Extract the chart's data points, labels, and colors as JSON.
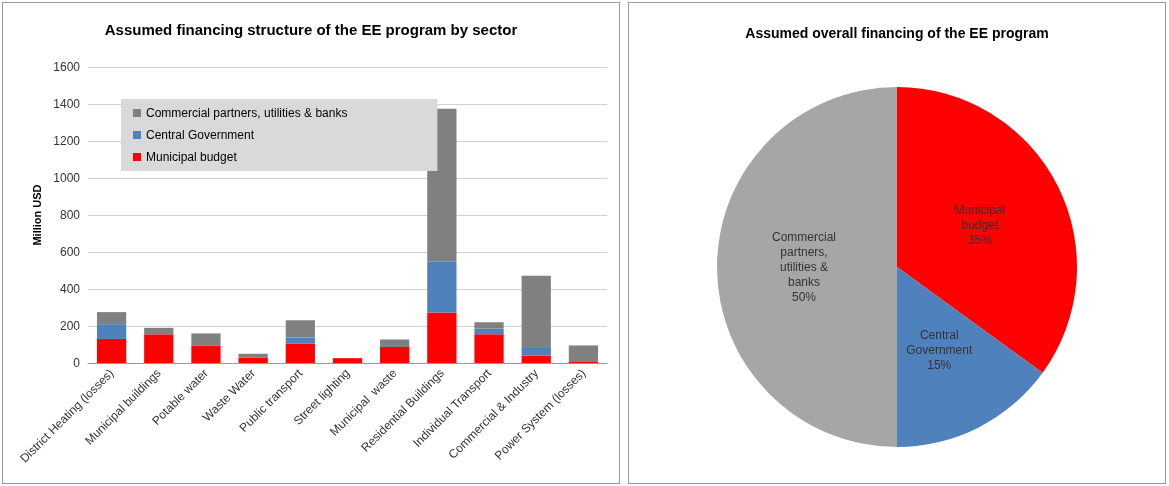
{
  "chart_data": [
    {
      "type": "bar",
      "title": "Assumed financing structure of the EE program by sector",
      "ylabel": "Million USD",
      "categories": [
        "District Heating (losses)",
        "Municipal buildings",
        "Potable water",
        "Waste Water",
        "Public transport",
        "Street lighting",
        "Municipal  waste",
        "Residential Buildings",
        "Individual Transport",
        "Commercial & Industry",
        "Power System (losses)"
      ],
      "series": [
        {
          "name": "Municipal budget",
          "color": "#ff0000",
          "values": [
            130,
            155,
            95,
            28,
            105,
            26,
            86,
            273,
            155,
            40,
            9
          ]
        },
        {
          "name": "Central Government",
          "color": "#4f81bd",
          "values": [
            80,
            0,
            0,
            0,
            33,
            0,
            0,
            277,
            32,
            46,
            0
          ]
        },
        {
          "name": "Commercial partners, utilities & banks",
          "color": "#808080",
          "values": [
            65,
            35,
            65,
            22,
            93,
            0,
            41,
            824,
            33,
            386,
            86
          ]
        }
      ],
      "stacked": true,
      "ylim": [
        0,
        1600
      ],
      "yticks": [
        0,
        200,
        400,
        600,
        800,
        1000,
        1200,
        1400,
        1600
      ],
      "grid": "y",
      "legend": "top left"
    },
    {
      "type": "pie",
      "title": "Assumed overall financing of the EE program",
      "categories": [
        "Municipal budget",
        "Central Government",
        "Commercial partners, utilities & banks"
      ],
      "values": [
        35,
        15,
        50
      ],
      "colors": [
        "#ff0000",
        "#4f81bd",
        "#a6a6a6"
      ],
      "value_labels": [
        "35%",
        "15%",
        "50%"
      ]
    }
  ]
}
